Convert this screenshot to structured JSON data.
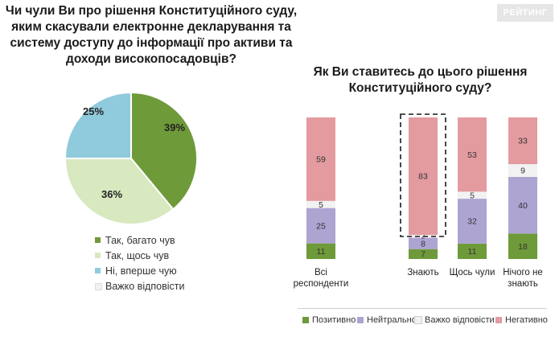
{
  "logo_text": "РЕЙТИНГ",
  "colors": {
    "positive": "#6e9a3a",
    "partly": "#d8e8bf",
    "neutral": "#ada4d2",
    "hard": "#f2f2f2",
    "negative": "#e39b9f",
    "pie_blue": "#8fcbdc"
  },
  "chart_data": [
    {
      "type": "pie",
      "title": "Чи чули Ви про рішення Конституційного суду, яким скасували електронне декларування та систему доступу до інформації про активи та доходи високопосадовців?",
      "slices": [
        {
          "label": "Так, багато чув",
          "value": 39,
          "value_label": "39%",
          "color": "#6e9a3a"
        },
        {
          "label": "Так, щось чув",
          "value": 36,
          "value_label": "36%",
          "color": "#d8e8bf"
        },
        {
          "label": "Ні, вперше чую",
          "value": 25,
          "value_label": "25%",
          "color": "#8fcbdc"
        },
        {
          "label": "Важко відповісти",
          "value": 0,
          "value_label": "",
          "color": "#f2f2f2"
        }
      ]
    },
    {
      "type": "bar",
      "stacked": true,
      "title": "Як Ви ставитесь до цього рішення Конституційного суду?",
      "categories": [
        "Всі респонденти",
        "Знають",
        "Щось чули",
        "Нічого не знають"
      ],
      "series": [
        {
          "name": "Позитивно",
          "values": [
            11,
            7,
            11,
            18
          ],
          "color": "#6e9a3a"
        },
        {
          "name": "Нейтрально",
          "values": [
            25,
            8,
            32,
            40
          ],
          "color": "#ada4d2"
        },
        {
          "name": "Важко відповісти",
          "values": [
            5,
            2,
            5,
            9
          ],
          "color": "#f2f2f2"
        },
        {
          "name": "Негативно",
          "values": [
            59,
            83,
            53,
            33
          ],
          "color": "#e39b9f"
        }
      ],
      "highlight_category": "Знають",
      "ylim": [
        0,
        100
      ]
    }
  ]
}
